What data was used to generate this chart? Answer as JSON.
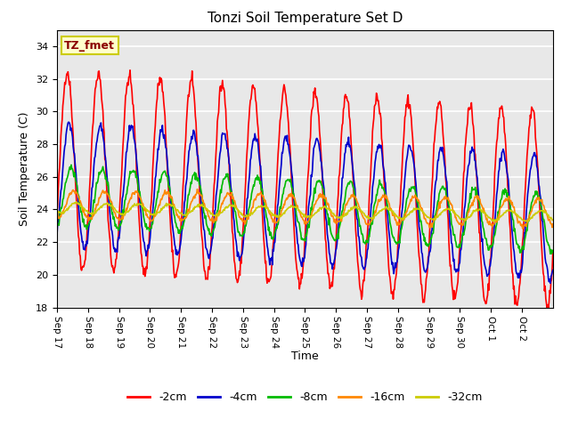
{
  "title": "Tonzi Soil Temperature Set D",
  "xlabel": "Time",
  "ylabel": "Soil Temperature (C)",
  "ylim": [
    18,
    35
  ],
  "yticks": [
    18,
    20,
    22,
    24,
    26,
    28,
    30,
    32,
    34
  ],
  "annotation_text": "TZ_fmet",
  "annotation_color": "#8B0000",
  "annotation_bg": "#FFFFCC",
  "annotation_border": "#CCCC00",
  "bg_color": "#E8E8E8",
  "grid_color": "white",
  "series_colors": {
    "-2cm": "#FF0000",
    "-4cm": "#0000CC",
    "-8cm": "#00BB00",
    "-16cm": "#FF8800",
    "-32cm": "#CCCC00"
  },
  "line_width": 1.2,
  "n_days": 16,
  "x_tick_labels": [
    "Sep 17",
    "Sep 18",
    "Sep 19",
    "Sep 20",
    "Sep 21",
    "Sep 22",
    "Sep 23",
    "Sep 24",
    "Sep 25",
    "Sep 26",
    "Sep 27",
    "Sep 28",
    "Sep 29",
    "Sep 30",
    "Oct 1",
    "Oct 2"
  ]
}
